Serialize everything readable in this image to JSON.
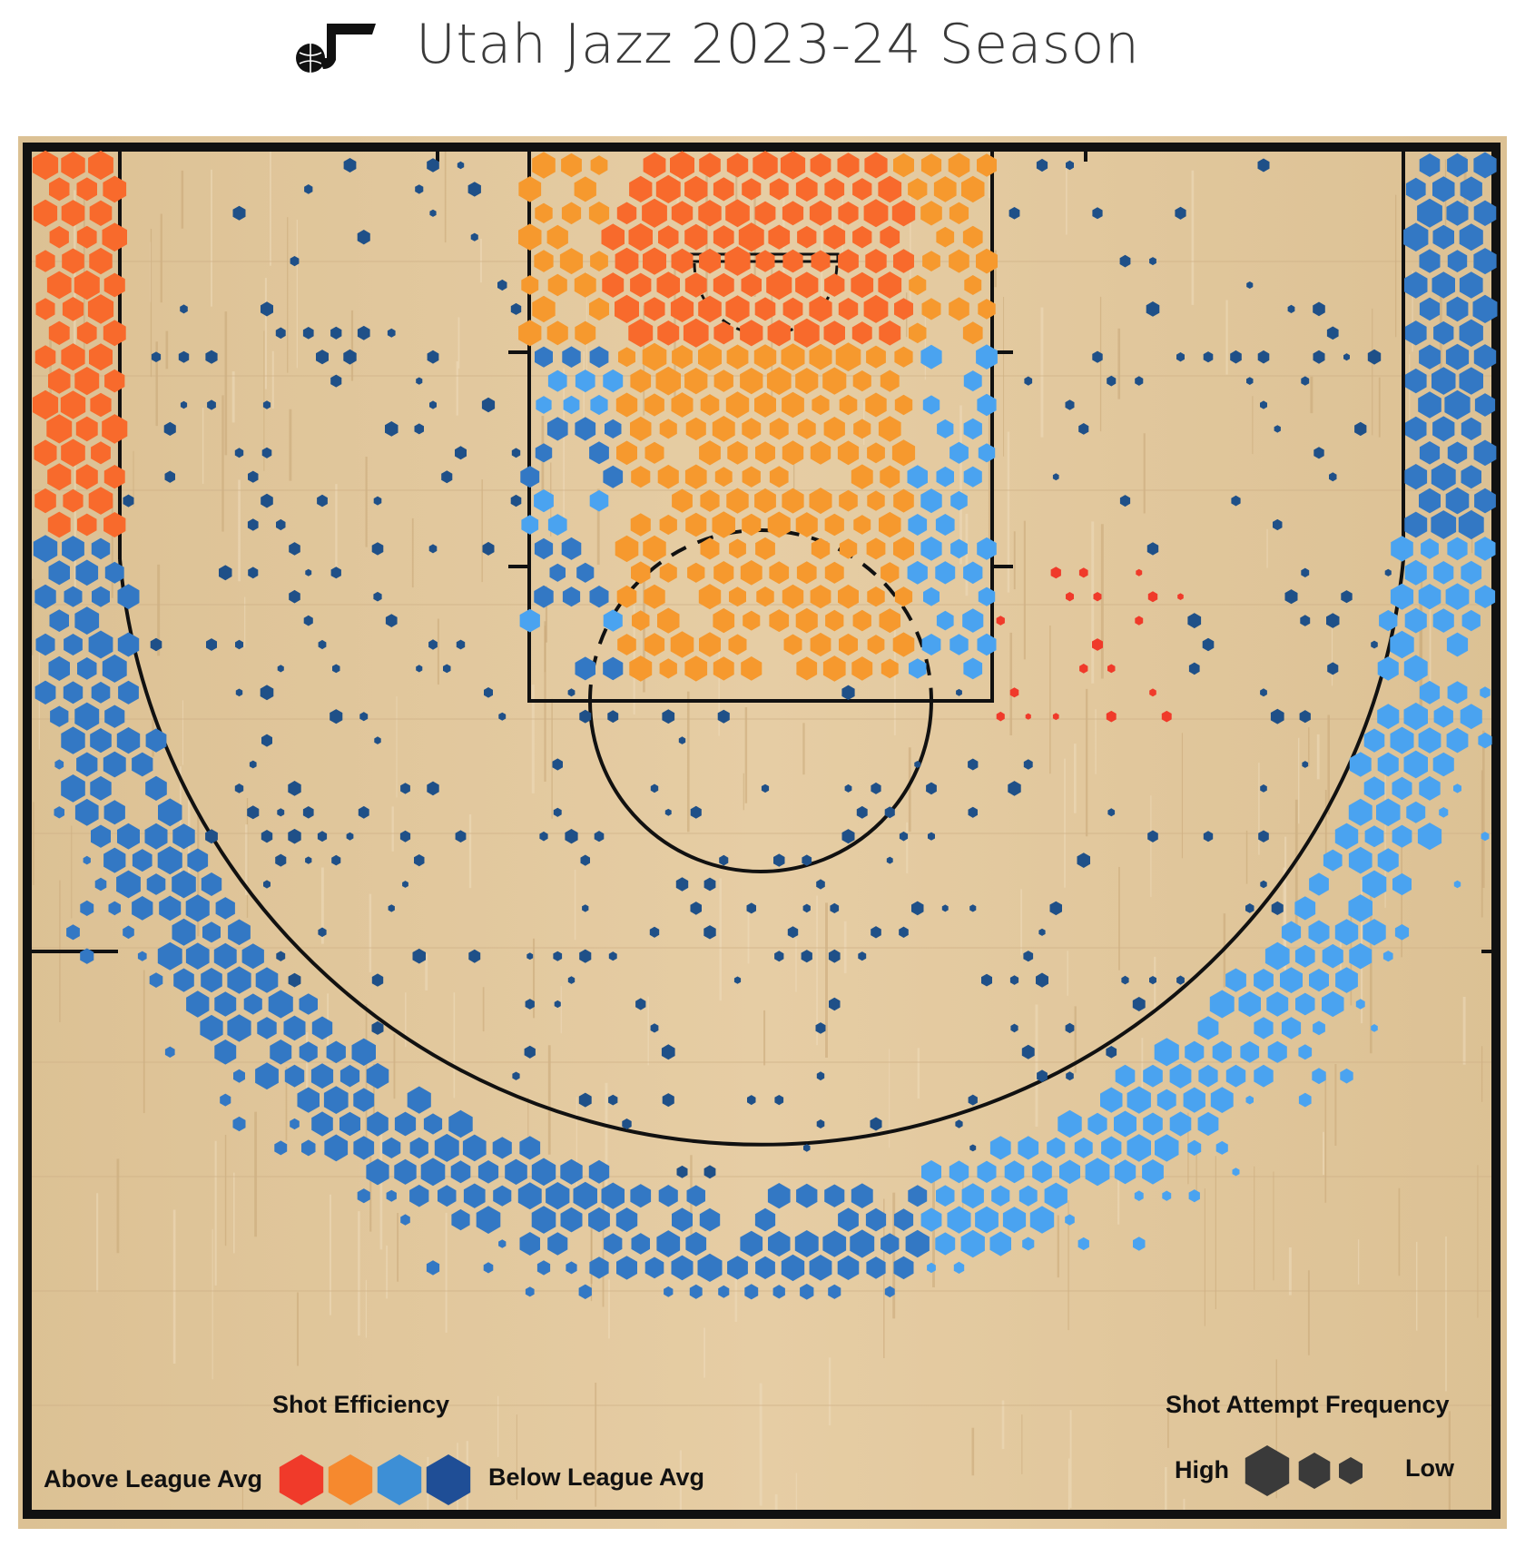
{
  "header": {
    "title": "Utah Jazz 2023-24 Season",
    "logo_icon": "jazz-note-basketball-icon"
  },
  "legend": {
    "efficiency_title": "Shot Efficiency",
    "above_label": "Above League Avg",
    "below_label": "Below League Avg",
    "efficiency_colors": [
      "#f03a2a",
      "#f6892e",
      "#3d8fd6",
      "#1f4e96"
    ],
    "frequency_title": "Shot Attempt Frequency",
    "high_label": "High",
    "low_label": "Low",
    "frequency_color": "#3a3a3a"
  },
  "colors": {
    "wood": "#e0c59a",
    "lines": "#111111",
    "red": "#f03a2a",
    "orange_red": "#f86a2c",
    "orange": "#f6992e",
    "light_blue": "#4aa3f0",
    "mid_blue": "#3378c4",
    "dark_blue": "#1f5088"
  },
  "chart_data": {
    "type": "hexbin",
    "title": "Utah Jazz 2023-24 Season",
    "color_scale": "shot efficiency vs league average (red = above, dark blue = below)",
    "size_scale": "shot attempt frequency (large = high, small = low)",
    "zones": [
      {
        "zone": "left corner three",
        "efficiency": "above",
        "frequency": "high"
      },
      {
        "zone": "right corner three",
        "efficiency": "below",
        "frequency": "high"
      },
      {
        "zone": "restricted area",
        "efficiency": "above",
        "frequency": "high"
      },
      {
        "zone": "paint (non-restricted)",
        "efficiency": "above",
        "frequency": "medium"
      },
      {
        "zone": "mid-range left",
        "efficiency": "below",
        "frequency": "low"
      },
      {
        "zone": "mid-range right",
        "efficiency": "below",
        "frequency": "low"
      },
      {
        "zone": "right elbow mid-range",
        "efficiency": "above",
        "frequency": "low"
      },
      {
        "zone": "left wing three",
        "efficiency": "below",
        "frequency": "high"
      },
      {
        "zone": "top of key three",
        "efficiency": "below",
        "frequency": "high"
      },
      {
        "zone": "right wing three",
        "efficiency": "below (slightly)",
        "frequency": "high"
      }
    ]
  }
}
